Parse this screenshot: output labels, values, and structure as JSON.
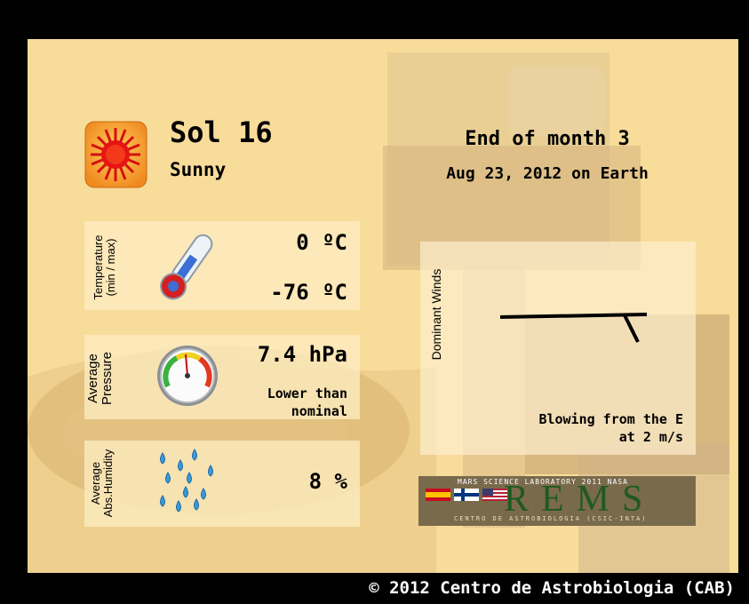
{
  "sol": {
    "title": "Sol 16",
    "condition": "Sunny",
    "icon": "sun-icon"
  },
  "period": {
    "line1": "End of month 3",
    "line2": "Aug 23, 2012 on Earth"
  },
  "temperature": {
    "label_line1": "Temperature",
    "label_line2": "(min / max)",
    "max": "0 ºC",
    "min": "-76 ºC",
    "icon": "thermometer-icon"
  },
  "pressure": {
    "label_line1": "Average",
    "label_line2": "Pressure",
    "value": "7.4 hPa",
    "note_line1": "Lower than",
    "note_line2": "nominal",
    "icon": "pressure-gauge-icon"
  },
  "humidity": {
    "label_line1": "Average",
    "label_line2": "Abs.Humidity",
    "value": "8 %",
    "icon": "water-drops-icon"
  },
  "winds": {
    "label": "Dominant Winds",
    "desc_line1": "Blowing from the E",
    "desc_line2": "at 2 m/s",
    "direction_from": "E",
    "speed_ms": 2
  },
  "logo": {
    "top_text": "MARS SCIENCE LABORATORY 2011   NASA",
    "name": "REMS",
    "bottom_text": "CENTRO DE ASTROBIOLOGIA  (CSIC-INTA)"
  },
  "footer": {
    "copyright": "© 2012 Centro de Astrobiologia (CAB)"
  },
  "colors": {
    "background": "#f8dc9a",
    "frame": "#000000",
    "logo_green": "#1f5a1f"
  }
}
